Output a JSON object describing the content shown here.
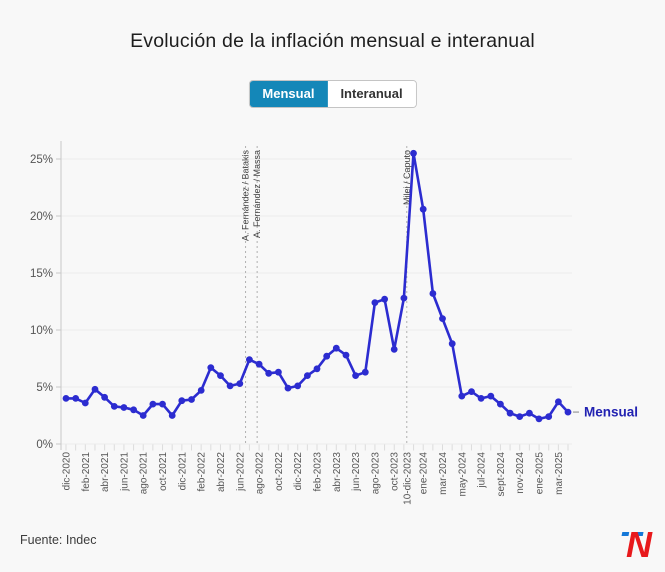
{
  "header": {
    "title": "Evolución de la inflación mensual e interanual"
  },
  "tabs": [
    {
      "label": "Mensual",
      "active": true
    },
    {
      "label": "Interanual",
      "active": false
    }
  ],
  "chart_data": {
    "type": "line",
    "title": "Evolución de la inflación mensual e interanual",
    "categories": [
      "dic-2020",
      "ene-2021",
      "feb-2021",
      "mar-2021",
      "abr-2021",
      "may-2021",
      "jun-2021",
      "jul-2021",
      "ago-2021",
      "sept-2021",
      "oct-2021",
      "nov-2021",
      "dic-2021",
      "ene-2022",
      "feb-2022",
      "mar-2022",
      "abr-2022",
      "may-2022",
      "jun-2022",
      "jul-2022",
      "ago-2022",
      "sept-2022",
      "oct-2022",
      "nov-2022",
      "dic-2022",
      "ene-2023",
      "feb-2023",
      "mar-2023",
      "abr-2023",
      "may-2023",
      "jun-2023",
      "jul-2023",
      "ago-2023",
      "sept-2023",
      "oct-2023",
      "nov-2023",
      "dic-2023",
      "ene-2024",
      "feb-2024",
      "mar-2024",
      "abr-2024",
      "may-2024",
      "jun-2024",
      "jul-2024",
      "ago-2024",
      "sept-2024",
      "oct-2024",
      "nov-2024",
      "dic-2024",
      "ene-2025",
      "feb-2025",
      "mar-2025",
      "abr-2025"
    ],
    "series": [
      {
        "name": "Mensual",
        "values": [
          4.0,
          4.0,
          3.6,
          4.8,
          4.1,
          3.3,
          3.2,
          3.0,
          2.5,
          3.5,
          3.5,
          2.5,
          3.8,
          3.9,
          4.7,
          6.7,
          6.0,
          5.1,
          5.3,
          7.4,
          7.0,
          6.2,
          6.3,
          4.9,
          5.1,
          6.0,
          6.6,
          7.7,
          8.4,
          7.8,
          6.0,
          6.3,
          12.4,
          12.7,
          8.3,
          12.8,
          25.5,
          20.6,
          13.2,
          11.0,
          8.8,
          4.2,
          4.6,
          4.0,
          4.2,
          3.5,
          2.7,
          2.4,
          2.7,
          2.2,
          2.4,
          3.7,
          2.8
        ]
      }
    ],
    "x_tick_labels": [
      {
        "label": "dic-2020",
        "index": 0
      },
      {
        "label": "feb-2021",
        "index": 2
      },
      {
        "label": "abr-2021",
        "index": 4
      },
      {
        "label": "jun-2021",
        "index": 6
      },
      {
        "label": "ago-2021",
        "index": 8
      },
      {
        "label": "oct-2021",
        "index": 10
      },
      {
        "label": "dic-2021",
        "index": 12
      },
      {
        "label": "feb-2022",
        "index": 14
      },
      {
        "label": "abr-2022",
        "index": 16
      },
      {
        "label": "jun-2022",
        "index": 18
      },
      {
        "label": "ago-2022",
        "index": 20
      },
      {
        "label": "oct-2022",
        "index": 22
      },
      {
        "label": "dic-2022",
        "index": 24
      },
      {
        "label": "feb-2023",
        "index": 26
      },
      {
        "label": "abr-2023",
        "index": 28
      },
      {
        "label": "jun-2023",
        "index": 30
      },
      {
        "label": "ago-2023",
        "index": 32
      },
      {
        "label": "oct-2023",
        "index": 34
      },
      {
        "label": "10-dic-2023",
        "index": 35.3
      },
      {
        "label": "ene-2024",
        "index": 37
      },
      {
        "label": "mar-2024",
        "index": 39
      },
      {
        "label": "may-2024",
        "index": 41
      },
      {
        "label": "jul-2024",
        "index": 43
      },
      {
        "label": "sept-2024",
        "index": 45
      },
      {
        "label": "nov-2024",
        "index": 47
      },
      {
        "label": "ene-2025",
        "index": 49
      },
      {
        "label": "mar-2025",
        "index": 51
      }
    ],
    "y_tick_labels": [
      {
        "label": "0%",
        "value": 0
      },
      {
        "label": "5%",
        "value": 5
      },
      {
        "label": "10%",
        "value": 10
      },
      {
        "label": "15%",
        "value": 15
      },
      {
        "label": "20%",
        "value": 20
      },
      {
        "label": "25%",
        "value": 25
      }
    ],
    "ylim": [
      0,
      26.7
    ],
    "grid": true,
    "end_label": "Mensual",
    "annotations": [
      {
        "label": "A. Fernández / Batakis",
        "month_index": 18.6
      },
      {
        "label": "A. Fernández / Massa",
        "month_index": 19.8
      },
      {
        "label": "Milei / Caputo",
        "month_index": 35.3
      }
    ]
  },
  "footer": {
    "source": "Fuente: Indec"
  },
  "logo": {
    "t": "T",
    "n": "N"
  },
  "colors": {
    "line": "#2c2cd0",
    "point": "#2c2cd0",
    "end_label": "#2222b2",
    "tab_active_bg": "#1487b8",
    "annotation_line": "#b0b0b0",
    "annotation_text": "#444444",
    "axis_text": "#555555",
    "gridline": "#ebebeb",
    "axis_line": "#c8c8c8"
  }
}
